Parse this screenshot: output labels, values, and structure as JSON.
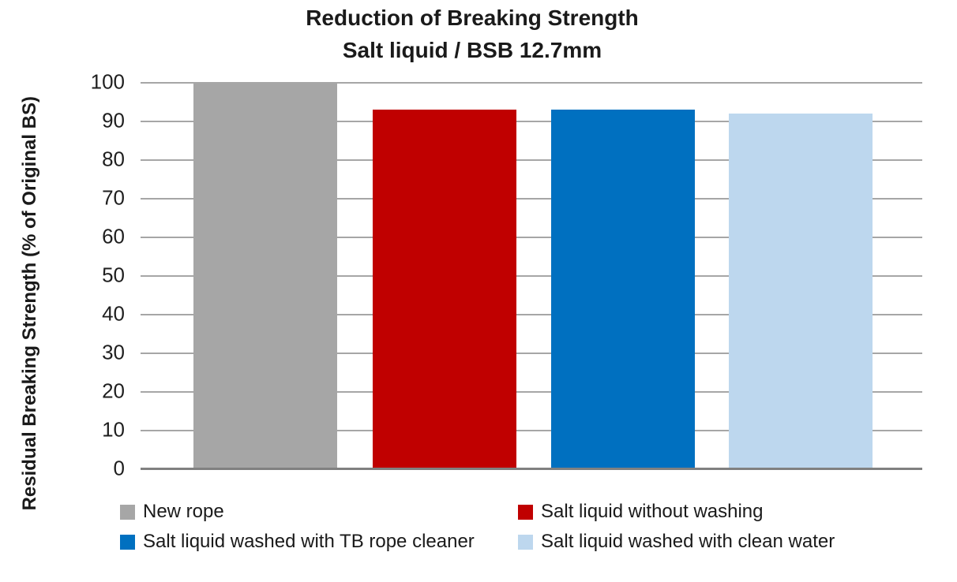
{
  "title": {
    "line1": "Reduction of Breaking Strength",
    "line2": "Salt liquid / BSB 12.7mm"
  },
  "chart_data": {
    "type": "bar",
    "title": "Reduction of Breaking Strength",
    "subtitle": "Salt liquid / BSB 12.7mm",
    "ylabel": "Residual Breaking Strength (% of Original BS)",
    "xlabel": "",
    "ylim": [
      0,
      100
    ],
    "yticks": [
      0,
      10,
      20,
      30,
      40,
      50,
      60,
      70,
      80,
      90,
      100
    ],
    "grid": "horizontal gridlines on, no right or left plot border",
    "legend_position": "bottom, two columns",
    "categories": [
      "New rope",
      "Salt liquid without washing",
      "Salt liquid washed with TB rope cleaner",
      "Salt liquid washed with clean water"
    ],
    "series": [
      {
        "name": "New rope",
        "value": 100,
        "color": "#A6A6A6"
      },
      {
        "name": "Salt liquid without washing",
        "value": 93,
        "color": "#C00000"
      },
      {
        "name": "Salt liquid washed with TB rope cleaner",
        "value": 93,
        "color": "#0070C0"
      },
      {
        "name": "Salt liquid washed with clean water",
        "value": 92,
        "color": "#BDD7EE"
      }
    ]
  },
  "colors": {
    "background": "#FFFFFF",
    "gridline": "#A6A6A6",
    "axis_line": "#808080",
    "text": "#1A1A1A"
  }
}
